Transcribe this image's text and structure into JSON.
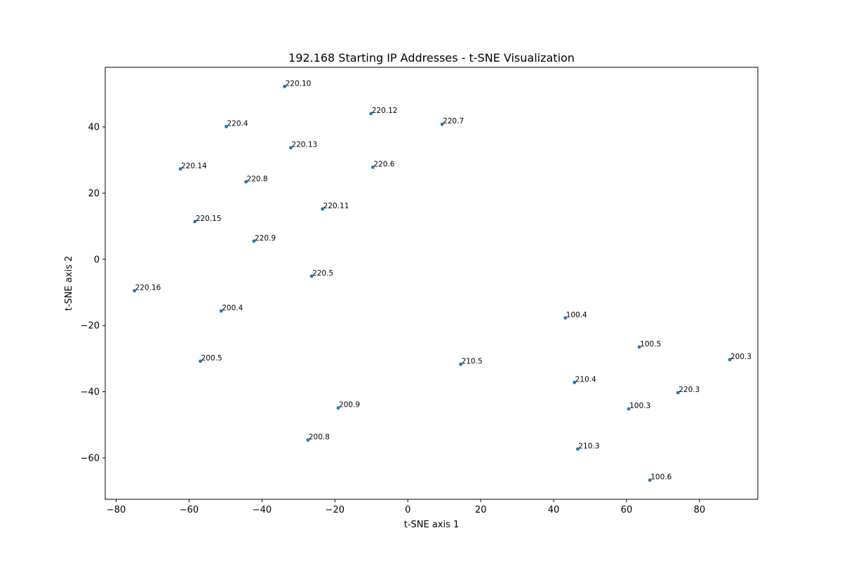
{
  "chart_data": {
    "type": "scatter",
    "title": "192.168 Starting IP Addresses - t-SNE Visualization",
    "xlabel": "t-SNE axis 1",
    "ylabel": "t-SNE axis 2",
    "xlim": [
      -83,
      96
    ],
    "ylim": [
      -72.5,
      58
    ],
    "xticks": [
      -80,
      -60,
      -40,
      -20,
      0,
      20,
      40,
      60,
      80
    ],
    "yticks": [
      -60,
      -40,
      -20,
      0,
      20,
      40
    ],
    "grid": false,
    "marker_color": "#1f77b4",
    "points": [
      {
        "label": "220.10",
        "x": -33.8,
        "y": 52.2
      },
      {
        "label": "220.12",
        "x": -10.1,
        "y": 44.0
      },
      {
        "label": "220.7",
        "x": 9.4,
        "y": 40.8
      },
      {
        "label": "220.4",
        "x": -49.8,
        "y": 40.1
      },
      {
        "label": "220.13",
        "x": -32.1,
        "y": 33.7
      },
      {
        "label": "220.6",
        "x": -9.6,
        "y": 27.8
      },
      {
        "label": "220.14",
        "x": -62.4,
        "y": 27.3
      },
      {
        "label": "220.8",
        "x": -44.4,
        "y": 23.4
      },
      {
        "label": "220.11",
        "x": -23.4,
        "y": 15.2
      },
      {
        "label": "220.15",
        "x": -58.4,
        "y": 11.4
      },
      {
        "label": "220.9",
        "x": -42.2,
        "y": 5.5
      },
      {
        "label": "220.5",
        "x": -26.4,
        "y": -5.1
      },
      {
        "label": "220.16",
        "x": -75.0,
        "y": -9.5
      },
      {
        "label": "200.4",
        "x": -51.2,
        "y": -15.6
      },
      {
        "label": "100.4",
        "x": 43.2,
        "y": -17.7
      },
      {
        "label": "100.5",
        "x": 63.5,
        "y": -26.5
      },
      {
        "label": "200.3",
        "x": 88.3,
        "y": -30.3
      },
      {
        "label": "200.5",
        "x": -56.9,
        "y": -30.8
      },
      {
        "label": "210.5",
        "x": 14.5,
        "y": -31.7
      },
      {
        "label": "210.4",
        "x": 45.7,
        "y": -37.2
      },
      {
        "label": "220.3",
        "x": 74.1,
        "y": -40.3
      },
      {
        "label": "100.3",
        "x": 60.6,
        "y": -45.2
      },
      {
        "label": "200.9",
        "x": -19.1,
        "y": -44.9
      },
      {
        "label": "200.8",
        "x": -27.4,
        "y": -54.6
      },
      {
        "label": "210.3",
        "x": 46.6,
        "y": -57.3
      },
      {
        "label": "100.6",
        "x": 66.4,
        "y": -66.7
      }
    ]
  }
}
